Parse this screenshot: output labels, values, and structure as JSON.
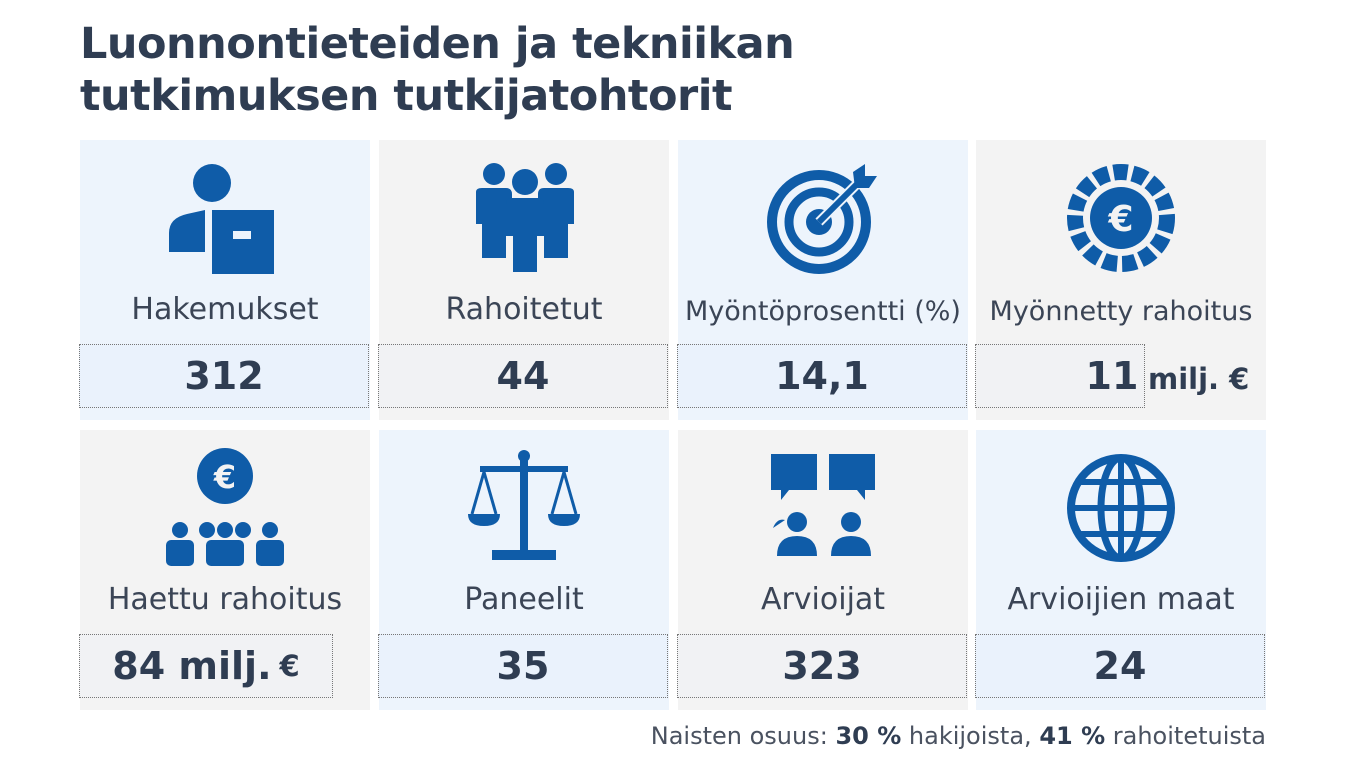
{
  "title": {
    "line1": "Luonnontieteiden ja tekniikan",
    "line2": "tutkimuksen tutkijatohtorit"
  },
  "tiles": [
    {
      "label": "Hakemukset",
      "value": "312",
      "unit": "",
      "icon": "applicant-icon"
    },
    {
      "label": "Rahoitetut",
      "value": "44",
      "unit": "",
      "icon": "group-icon"
    },
    {
      "label": "Myöntöprosentti (%)",
      "value": "14,1",
      "unit": "",
      "icon": "target-icon"
    },
    {
      "label": "Myönnetty rahoitus",
      "value": "11",
      "unit": "milj. €",
      "icon": "euro-coin-icon"
    },
    {
      "label": "Haettu rahoitus",
      "value": "84 milj.",
      "unit": "€",
      "icon": "euro-people-icon"
    },
    {
      "label": "Paneelit",
      "value": "35",
      "unit": "",
      "icon": "scales-icon"
    },
    {
      "label": "Arvioijat",
      "value": "323",
      "unit": "",
      "icon": "discussion-icon"
    },
    {
      "label": "Arvioijien maat",
      "value": "24",
      "unit": "",
      "icon": "globe-icon"
    }
  ],
  "footnote": {
    "prefix": "Naisten osuus:",
    "applicants_pct": "30 %",
    "applicants_text": "hakijoista,",
    "funded_pct": "41 %",
    "funded_text": "rahoitetuista"
  },
  "colors": {
    "icon": "#0f5ca8",
    "text": "#2f3d52",
    "tile_blue": "#edf4fc",
    "tile_grey": "#f3f3f3"
  }
}
